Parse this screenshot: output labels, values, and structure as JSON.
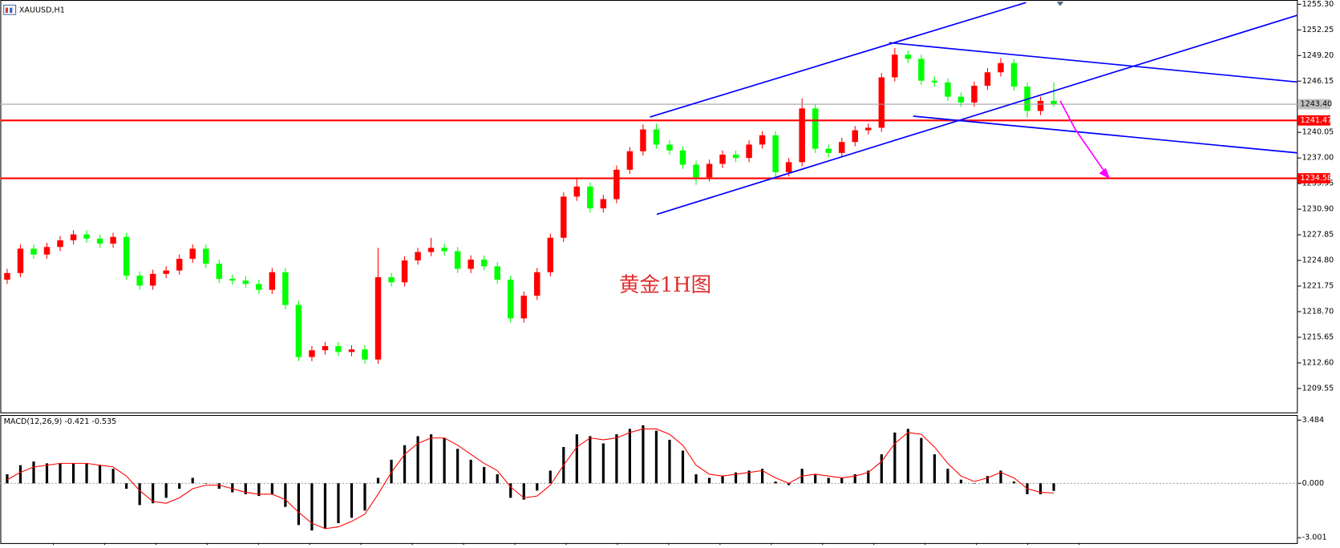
{
  "chart_data": {
    "type": "candlestick",
    "title": "XAUUSD,H1",
    "annotation": "黄金1H图",
    "up_color": "#ff0000",
    "down_color": "#00ff00",
    "ylim": [
      1206.7,
      1255.81
    ],
    "yticks": [
      {
        "value": 1255.3,
        "label": "1255.30"
      },
      1252.25,
      {
        "value": 1249.2,
        "label": "1249.20"
      },
      1246.15,
      1240.05,
      {
        "value": 1237.0,
        "label": "1237.00"
      },
      1233.95,
      {
        "value": 1230.9,
        "label": "1230.90"
      },
      1227.85,
      {
        "value": 1224.8,
        "label": "1224.80"
      },
      1221.75,
      {
        "value": 1218.7,
        "label": "1218.70"
      },
      1215.65,
      {
        "value": 1212.6,
        "label": "1212.60"
      },
      1209.55
    ],
    "price_line": {
      "value": 1243.4,
      "label": "1243.40"
    },
    "levels": [
      1241.47,
      1234.58
    ],
    "level_color": "#ff0000",
    "candles": [
      [
        1222.5,
        1223.8,
        1222.0,
        1223.3
      ],
      [
        1223.3,
        1226.7,
        1222.8,
        1226.2
      ],
      [
        1226.2,
        1226.7,
        1225.0,
        1225.5
      ],
      [
        1225.5,
        1226.9,
        1225.0,
        1226.4
      ],
      [
        1226.4,
        1227.7,
        1225.9,
        1227.2
      ],
      [
        1227.2,
        1228.4,
        1226.7,
        1227.9
      ],
      [
        1227.9,
        1228.4,
        1226.9,
        1227.4
      ],
      [
        1227.4,
        1227.9,
        1226.3,
        1226.8
      ],
      [
        1226.8,
        1228.1,
        1226.3,
        1227.6
      ],
      [
        1227.6,
        1228.1,
        1222.5,
        1223.0
      ],
      [
        1223.0,
        1223.5,
        1221.3,
        1221.8
      ],
      [
        1221.8,
        1223.7,
        1221.3,
        1223.2
      ],
      [
        1223.2,
        1224.1,
        1222.7,
        1223.6
      ],
      [
        1223.6,
        1225.5,
        1223.1,
        1225.0
      ],
      [
        1225.0,
        1226.7,
        1224.5,
        1226.2
      ],
      [
        1226.2,
        1226.7,
        1223.9,
        1224.4
      ],
      [
        1224.4,
        1224.9,
        1222.1,
        1222.6
      ],
      [
        1222.6,
        1223.1,
        1221.9,
        1222.4
      ],
      [
        1222.4,
        1222.9,
        1221.5,
        1222.0
      ],
      [
        1222.0,
        1222.5,
        1220.8,
        1221.3
      ],
      [
        1221.3,
        1223.9,
        1220.8,
        1223.4
      ],
      [
        1223.4,
        1223.9,
        1219.0,
        1219.5
      ],
      [
        1219.5,
        1220.0,
        1212.8,
        1213.3
      ],
      [
        1213.3,
        1214.6,
        1212.8,
        1214.1
      ],
      [
        1214.1,
        1215.1,
        1213.6,
        1214.6
      ],
      [
        1214.6,
        1215.1,
        1213.4,
        1213.9
      ],
      [
        1213.9,
        1214.7,
        1213.4,
        1214.2
      ],
      [
        1214.2,
        1214.7,
        1212.5,
        1213.0
      ],
      [
        1213.0,
        1226.3,
        1212.5,
        1222.8
      ],
      [
        1222.8,
        1223.3,
        1221.7,
        1222.2
      ],
      [
        1222.2,
        1225.3,
        1221.7,
        1224.8
      ],
      [
        1224.8,
        1226.3,
        1224.3,
        1225.8
      ],
      [
        1225.8,
        1227.5,
        1225.3,
        1226.3
      ],
      [
        1226.3,
        1226.8,
        1225.4,
        1225.9
      ],
      [
        1225.9,
        1226.4,
        1223.3,
        1223.8
      ],
      [
        1223.8,
        1225.4,
        1223.3,
        1224.9
      ],
      [
        1224.9,
        1225.4,
        1223.6,
        1224.1
      ],
      [
        1224.1,
        1224.6,
        1222.0,
        1222.5
      ],
      [
        1222.5,
        1223.0,
        1217.4,
        1217.9
      ],
      [
        1217.9,
        1221.1,
        1217.4,
        1220.6
      ],
      [
        1220.6,
        1223.9,
        1220.1,
        1223.4
      ],
      [
        1223.4,
        1228.0,
        1222.9,
        1227.5
      ],
      [
        1227.5,
        1232.9,
        1227.0,
        1232.4
      ],
      [
        1232.4,
        1234.7,
        1231.9,
        1233.6
      ],
      [
        1233.6,
        1234.1,
        1230.5,
        1231.0
      ],
      [
        1231.0,
        1232.6,
        1230.5,
        1232.1
      ],
      [
        1232.1,
        1236.1,
        1231.6,
        1235.6
      ],
      [
        1235.6,
        1238.3,
        1235.1,
        1237.8
      ],
      [
        1237.8,
        1241.0,
        1237.3,
        1240.4
      ],
      [
        1240.4,
        1241.1,
        1238.1,
        1238.6
      ],
      [
        1238.6,
        1239.1,
        1237.4,
        1237.9
      ],
      [
        1237.9,
        1238.4,
        1235.7,
        1236.2
      ],
      [
        1236.2,
        1236.7,
        1233.8,
        1234.7
      ],
      [
        1234.7,
        1236.8,
        1234.2,
        1236.3
      ],
      [
        1236.3,
        1237.9,
        1235.8,
        1237.4
      ],
      [
        1237.4,
        1237.9,
        1236.5,
        1237.0
      ],
      [
        1237.0,
        1239.1,
        1236.5,
        1238.6
      ],
      [
        1238.6,
        1240.2,
        1238.1,
        1239.7
      ],
      [
        1239.7,
        1240.2,
        1234.8,
        1235.3
      ],
      [
        1235.3,
        1237.0,
        1234.8,
        1236.5
      ],
      [
        1236.5,
        1244.1,
        1236.0,
        1242.9
      ],
      [
        1242.9,
        1243.4,
        1237.6,
        1238.1
      ],
      [
        1238.1,
        1238.6,
        1237.1,
        1237.6
      ],
      [
        1237.6,
        1239.4,
        1237.1,
        1238.9
      ],
      [
        1238.9,
        1240.8,
        1238.4,
        1240.3
      ],
      [
        1240.3,
        1241.1,
        1239.8,
        1240.6
      ],
      [
        1240.6,
        1247.1,
        1240.1,
        1246.6
      ],
      [
        1246.6,
        1250.1,
        1246.1,
        1249.3
      ],
      [
        1249.3,
        1249.8,
        1248.3,
        1248.8
      ],
      [
        1248.8,
        1249.3,
        1245.7,
        1246.2
      ],
      [
        1246.2,
        1246.7,
        1245.5,
        1246.0
      ],
      [
        1246.0,
        1246.5,
        1243.8,
        1244.3
      ],
      [
        1244.3,
        1244.8,
        1243.1,
        1243.6
      ],
      [
        1243.6,
        1246.1,
        1243.1,
        1245.6
      ],
      [
        1245.6,
        1247.7,
        1245.1,
        1247.2
      ],
      [
        1247.2,
        1248.9,
        1246.7,
        1248.3
      ],
      [
        1248.3,
        1248.8,
        1245.0,
        1245.5
      ],
      [
        1245.5,
        1246.0,
        1241.8,
        1242.6
      ],
      [
        1242.6,
        1244.3,
        1242.1,
        1243.8
      ],
      [
        1243.8,
        1246.0,
        1243.1,
        1243.4
      ]
    ],
    "macd": {
      "label": "MACD(12,26,9) -0.421 -0.535",
      "ylim": [
        -3.296,
        3.766
      ],
      "yticks": [
        3.484,
        {
          "value": 0,
          "label": "0.000"
        },
        -3.001
      ],
      "signal_color": "#ff0000",
      "histogram": [
        0.5,
        1.0,
        1.2,
        1.1,
        1.1,
        1.1,
        1.1,
        1.0,
        0.8,
        -0.3,
        -1.2,
        -1.1,
        -0.8,
        -0.3,
        0.3,
        0.0,
        -0.3,
        -0.5,
        -0.6,
        -0.7,
        -0.6,
        -1.3,
        -2.3,
        -2.6,
        -2.5,
        -2.2,
        -1.9,
        -1.5,
        0.3,
        1.3,
        2.1,
        2.6,
        2.7,
        2.5,
        1.9,
        1.3,
        0.9,
        0.5,
        -0.8,
        -0.9,
        -0.4,
        0.7,
        2.0,
        2.7,
        2.6,
        2.2,
        2.7,
        3.0,
        3.2,
        2.9,
        2.4,
        1.8,
        0.5,
        0.3,
        0.4,
        0.6,
        0.7,
        0.8,
        0.1,
        -0.1,
        0.8,
        0.5,
        0.3,
        0.3,
        0.5,
        0.7,
        1.6,
        2.8,
        3.0,
        2.5,
        1.6,
        0.8,
        0.2,
        0.0,
        0.4,
        0.7,
        0.1,
        -0.6,
        -0.6,
        -0.421
      ],
      "signal": [
        0.2,
        0.6,
        0.9,
        1.0,
        1.1,
        1.1,
        1.1,
        1.0,
        0.9,
        0.4,
        -0.4,
        -1.0,
        -1.1,
        -0.8,
        -0.3,
        -0.1,
        -0.1,
        -0.3,
        -0.5,
        -0.6,
        -0.6,
        -0.9,
        -1.6,
        -2.2,
        -2.5,
        -2.4,
        -2.1,
        -1.7,
        -0.6,
        0.6,
        1.6,
        2.2,
        2.5,
        2.5,
        2.1,
        1.6,
        1.1,
        0.7,
        -0.2,
        -0.8,
        -0.7,
        -0.1,
        1.0,
        2.0,
        2.5,
        2.4,
        2.5,
        2.8,
        3.0,
        3.0,
        2.7,
        2.1,
        1.0,
        0.5,
        0.4,
        0.5,
        0.6,
        0.7,
        0.3,
        0.0,
        0.4,
        0.5,
        0.4,
        0.3,
        0.4,
        0.6,
        1.2,
        2.2,
        2.8,
        2.7,
        2.0,
        1.1,
        0.4,
        0.1,
        0.3,
        0.6,
        0.3,
        -0.3,
        -0.5,
        -0.535
      ]
    }
  }
}
